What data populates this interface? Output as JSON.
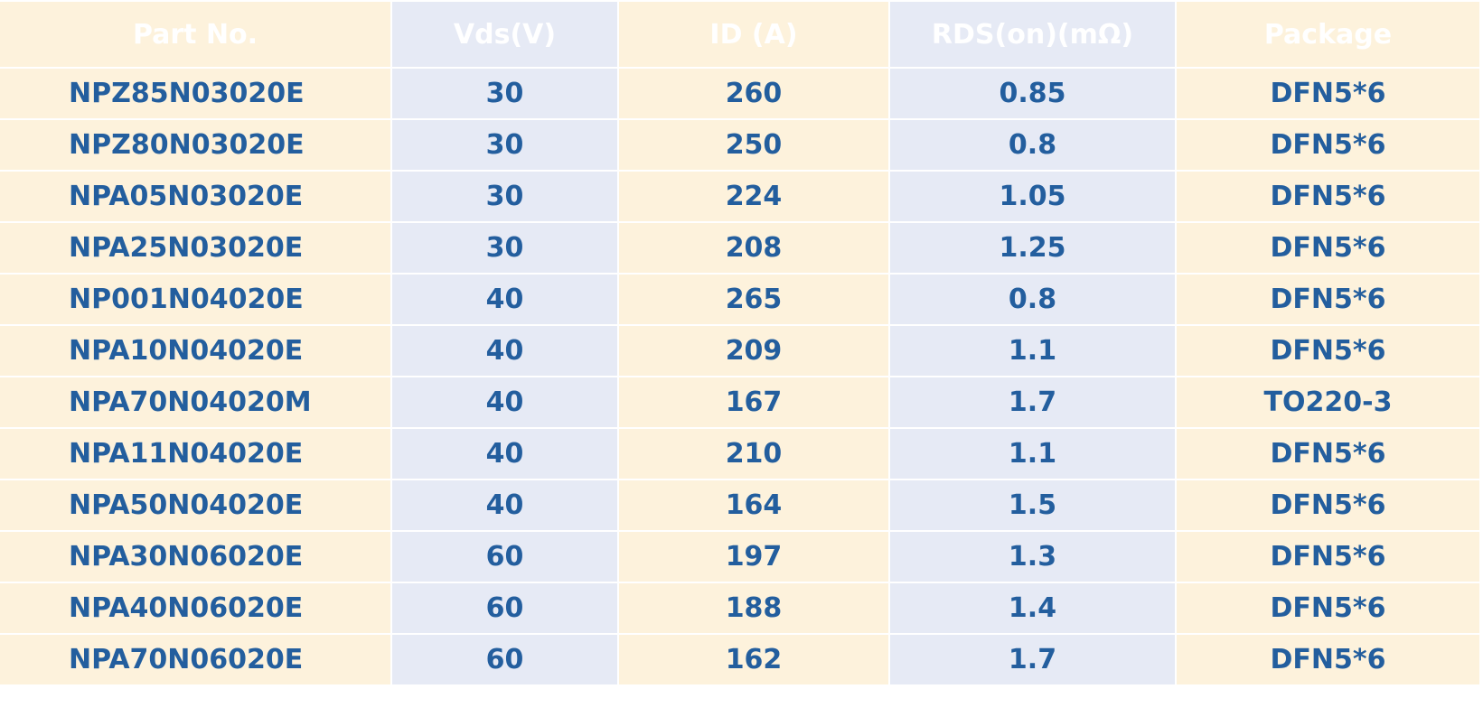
{
  "table": {
    "header": [
      "Part No.",
      "Vds(V)",
      "ID (A)",
      "RDS(on)(mΩ)",
      "Package"
    ],
    "rows": [
      [
        "NPZ85N03020E",
        30,
        260,
        0.85,
        "DFN5*6"
      ],
      [
        "NPZ80N03020E",
        30,
        250,
        0.8,
        "DFN5*6"
      ],
      [
        "NPA05N03020E",
        30,
        224,
        1.05,
        "DFN5*6"
      ],
      [
        "NPA25N03020E",
        30,
        208,
        1.25,
        "DFN5*6"
      ],
      [
        "NP001N04020E",
        40,
        265,
        0.8,
        "DFN5*6"
      ],
      [
        "NPA10N04020E",
        40,
        209,
        1.1,
        "DFN5*6"
      ],
      [
        "NPA70N04020M",
        40,
        167,
        1.7,
        "TO220-3"
      ],
      [
        "NPA11N04020E",
        40,
        210,
        1.1,
        "DFN5*6"
      ],
      [
        "NPA50N04020E",
        40,
        164,
        1.5,
        "DFN5*6"
      ],
      [
        "NPA30N06020E",
        60,
        197,
        1.3,
        "DFN5*6"
      ],
      [
        "NPA40N06020E",
        60,
        188,
        1.4,
        "DFN5*6"
      ],
      [
        "NPA70N06020E",
        60,
        162,
        1.7,
        "DFN5*6"
      ]
    ]
  }
}
